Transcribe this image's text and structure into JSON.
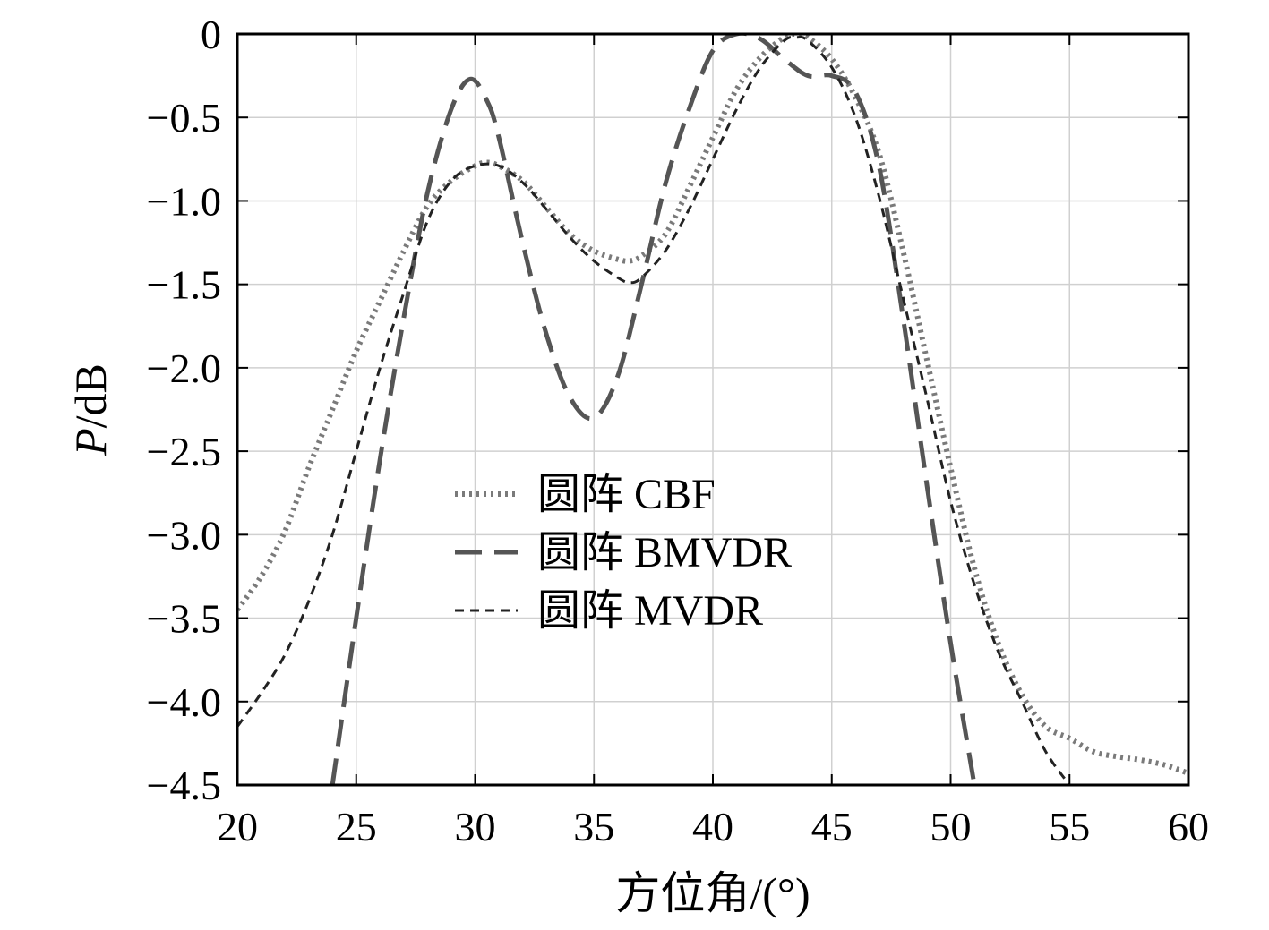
{
  "chart_data": {
    "type": "line",
    "title": "",
    "xlabel": "方位角/(°)",
    "ylabel_italic": "P",
    "ylabel_rest": "/dB",
    "xlim": [
      20,
      60
    ],
    "ylim": [
      -4.5,
      0
    ],
    "grid": true,
    "legend_position": "center",
    "xticks": [
      20,
      25,
      30,
      35,
      40,
      45,
      50,
      55,
      60
    ],
    "xtick_labels": [
      "20",
      "25",
      "30",
      "35",
      "40",
      "45",
      "50",
      "55",
      "60"
    ],
    "yticks": [
      0,
      -0.5,
      -1.0,
      -1.5,
      -2.0,
      -2.5,
      -3.0,
      -3.5,
      -4.0,
      -4.5
    ],
    "ytick_labels": [
      "0",
      "−0.5",
      "−1.0",
      "−1.5",
      "−2.0",
      "−2.5",
      "−3.0",
      "−3.5",
      "−4.0",
      "−4.5"
    ],
    "series": [
      {
        "name": "圆阵 CBF",
        "style": "dotted",
        "color": "#7a7a7a",
        "x": [
          20,
          21,
          22,
          23,
          24,
          25,
          26,
          27,
          28,
          29,
          30,
          30.5,
          31,
          32,
          33,
          34,
          35,
          36,
          36.5,
          37,
          38,
          39,
          40,
          41,
          42,
          43,
          43.5,
          44,
          45,
          46,
          47,
          48,
          49,
          50,
          51,
          52,
          53,
          54,
          55,
          56,
          57,
          58,
          59,
          60
        ],
        "y": [
          -3.45,
          -3.25,
          -2.98,
          -2.6,
          -2.25,
          -1.9,
          -1.6,
          -1.3,
          -1.03,
          -0.88,
          -0.79,
          -0.77,
          -0.79,
          -0.88,
          -1.04,
          -1.2,
          -1.3,
          -1.35,
          -1.36,
          -1.33,
          -1.2,
          -0.92,
          -0.62,
          -0.33,
          -0.14,
          -0.02,
          0.0,
          -0.02,
          -0.15,
          -0.38,
          -0.72,
          -1.3,
          -1.95,
          -2.6,
          -3.2,
          -3.65,
          -3.96,
          -4.15,
          -4.22,
          -4.3,
          -4.33,
          -4.35,
          -4.38,
          -4.43
        ]
      },
      {
        "name": "圆阵 BMVDR",
        "style": "dashed",
        "color": "#555555",
        "x": [
          24,
          25,
          26,
          27,
          28,
          29,
          29.8,
          30.5,
          31,
          32,
          33,
          34,
          35,
          36,
          37,
          38,
          39,
          40,
          41,
          42,
          43,
          44,
          45,
          46,
          47,
          48,
          49,
          50,
          51
        ],
        "y": [
          -4.5,
          -3.5,
          -2.55,
          -1.7,
          -0.95,
          -0.45,
          -0.27,
          -0.4,
          -0.62,
          -1.25,
          -1.8,
          -2.18,
          -2.3,
          -2.05,
          -1.5,
          -0.9,
          -0.45,
          -0.1,
          0.0,
          -0.03,
          -0.15,
          -0.25,
          -0.25,
          -0.35,
          -0.8,
          -1.7,
          -2.7,
          -3.65,
          -4.5
        ]
      },
      {
        "name": "圆阵 MVDR",
        "style": "short-dashed",
        "color": "#222222",
        "x": [
          20,
          21,
          22,
          23,
          24,
          25,
          26,
          27,
          28,
          29,
          30,
          31,
          32,
          33,
          34,
          35,
          36,
          36.5,
          37,
          38,
          39,
          40,
          41,
          42,
          43,
          43.5,
          44,
          45,
          46,
          47,
          48,
          49,
          50,
          51,
          52,
          53,
          54,
          55
        ],
        "y": [
          -4.15,
          -3.95,
          -3.72,
          -3.4,
          -3.0,
          -2.5,
          -2.0,
          -1.55,
          -1.12,
          -0.88,
          -0.79,
          -0.79,
          -0.89,
          -1.05,
          -1.22,
          -1.36,
          -1.46,
          -1.49,
          -1.46,
          -1.3,
          -1.05,
          -0.75,
          -0.45,
          -0.2,
          -0.04,
          -0.02,
          -0.04,
          -0.2,
          -0.5,
          -0.98,
          -1.58,
          -2.18,
          -2.8,
          -3.3,
          -3.7,
          -4.0,
          -4.3,
          -4.5
        ]
      }
    ]
  }
}
